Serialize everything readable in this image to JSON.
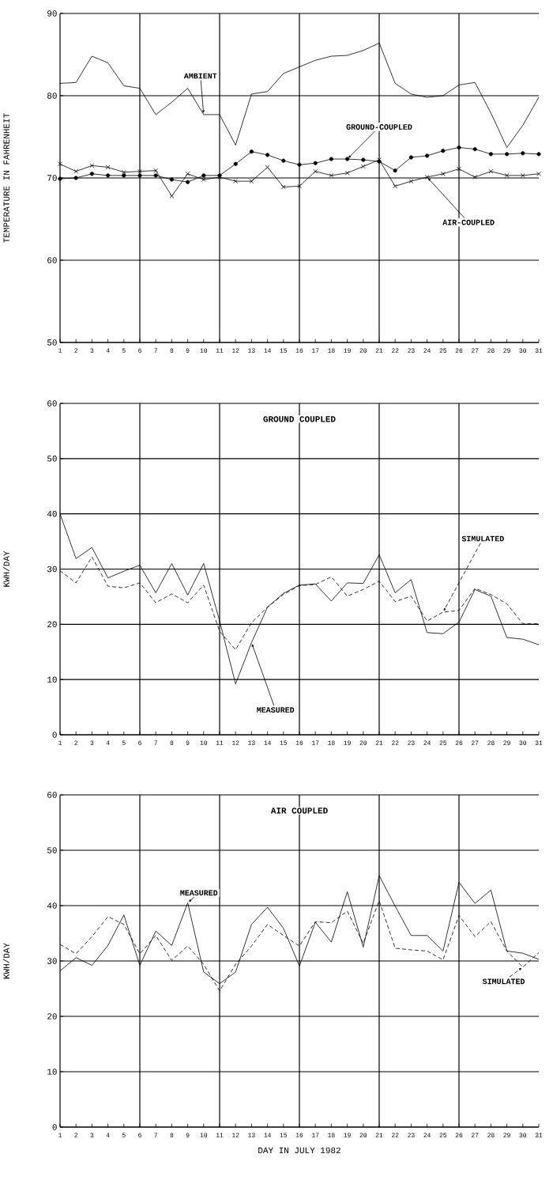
{
  "chart_data": [
    {
      "type": "line",
      "ylabel": "TEMPERATURE IN FAHRENHEIT",
      "x": [
        1,
        2,
        3,
        4,
        5,
        6,
        7,
        8,
        9,
        10,
        11,
        12,
        13,
        14,
        15,
        16,
        17,
        18,
        19,
        20,
        21,
        22,
        23,
        24,
        25,
        26,
        27,
        28,
        29,
        30,
        31
      ],
      "xlim": [
        1,
        31
      ],
      "xticks": [
        1,
        2,
        3,
        4,
        5,
        6,
        7,
        8,
        9,
        10,
        11,
        12,
        13,
        14,
        15,
        16,
        17,
        18,
        19,
        20,
        21,
        22,
        23,
        24,
        25,
        26,
        27,
        28,
        29,
        30,
        31
      ],
      "ylim": [
        50,
        90
      ],
      "yticks": [
        50,
        60,
        70,
        80,
        90
      ],
      "grid": "y",
      "ref_lines": [
        {
          "axis": "x",
          "value": 6
        },
        {
          "axis": "x",
          "value": 11
        },
        {
          "axis": "x",
          "value": 16
        },
        {
          "axis": "x",
          "value": 21
        },
        {
          "axis": "x",
          "value": 26
        }
      ],
      "series": [
        {
          "name": "AMBIENT",
          "color": "#000000",
          "marker": "none",
          "line_style": "solid",
          "values": [
            81.5,
            81.6,
            84.8,
            84.0,
            81.2,
            80.9,
            77.7,
            79.2,
            80.9,
            77.7,
            77.7,
            74.0,
            80.2,
            80.5,
            82.7,
            83.5,
            84.3,
            84.8,
            84.9,
            85.5,
            86.4,
            81.5,
            80.2,
            79.8,
            80.0,
            81.3,
            81.6,
            77.9,
            73.7,
            76.4,
            79.8
          ]
        },
        {
          "name": "GROUND-COUPLED",
          "color": "#000000",
          "marker": "circle",
          "line_style": "solid",
          "values": [
            69.9,
            70.0,
            70.5,
            70.3,
            70.3,
            70.3,
            70.3,
            69.8,
            69.5,
            70.3,
            70.3,
            71.7,
            73.2,
            72.8,
            72.1,
            71.6,
            71.8,
            72.3,
            72.3,
            72.2,
            72.0,
            70.9,
            72.5,
            72.7,
            73.3,
            73.7,
            73.5,
            72.9,
            72.9,
            73.0,
            72.9
          ]
        },
        {
          "name": "AIR-COUPLED",
          "color": "#000000",
          "marker": "cross",
          "line_style": "solid",
          "values": [
            71.7,
            70.8,
            71.5,
            71.3,
            70.7,
            70.8,
            70.9,
            67.8,
            70.5,
            69.8,
            70.1,
            69.6,
            69.6,
            71.3,
            68.9,
            69.0,
            70.8,
            70.3,
            70.6,
            71.4,
            72.2,
            69.0,
            69.6,
            70.1,
            70.5,
            71.1,
            70.1,
            70.8,
            70.3,
            70.3,
            70.5
          ]
        }
      ]
    },
    {
      "type": "line",
      "title": "GROUND COUPLED",
      "ylabel": "KWH/DAY",
      "x": [
        1,
        2,
        3,
        4,
        5,
        6,
        7,
        8,
        9,
        10,
        11,
        12,
        13,
        14,
        15,
        16,
        17,
        18,
        19,
        20,
        21,
        22,
        23,
        24,
        25,
        26,
        27,
        28,
        29,
        30,
        31
      ],
      "xlim": [
        1,
        31
      ],
      "xticks": [
        1,
        2,
        3,
        4,
        5,
        6,
        7,
        8,
        9,
        10,
        11,
        12,
        13,
        14,
        15,
        16,
        17,
        18,
        19,
        20,
        21,
        22,
        23,
        24,
        25,
        26,
        27,
        28,
        29,
        30,
        31
      ],
      "ylim": [
        0,
        60
      ],
      "yticks": [
        0,
        10,
        20,
        30,
        40,
        50,
        60
      ],
      "grid": "y",
      "ref_lines": [
        {
          "axis": "x",
          "value": 6
        },
        {
          "axis": "x",
          "value": 11
        },
        {
          "axis": "x",
          "value": 16
        },
        {
          "axis": "x",
          "value": 21
        },
        {
          "axis": "x",
          "value": 26
        }
      ],
      "series": [
        {
          "name": "MEASURED",
          "color": "#000000",
          "marker": "none",
          "line_style": "solid",
          "values": [
            40.0,
            31.9,
            33.9,
            28.4,
            29.6,
            30.7,
            25.7,
            31.0,
            25.3,
            31.0,
            20.6,
            9.2,
            16.7,
            23.1,
            25.6,
            27.1,
            27.3,
            24.2,
            27.5,
            27.4,
            32.6,
            25.7,
            28.1,
            18.5,
            18.3,
            20.4,
            26.3,
            25.1,
            17.6,
            17.3,
            16.3
          ]
        },
        {
          "name": "SIMULATED",
          "color": "#000000",
          "marker": "none",
          "line_style": "dashed",
          "values": [
            29.7,
            27.5,
            32.2,
            26.9,
            26.6,
            27.5,
            23.9,
            25.5,
            23.9,
            27.1,
            18.7,
            15.4,
            20.3,
            23.1,
            25.4,
            27.0,
            27.2,
            28.6,
            25.1,
            26.3,
            27.8,
            24.1,
            25.1,
            20.6,
            22.2,
            22.5,
            26.5,
            25.4,
            23.7,
            20.1,
            20.1
          ]
        }
      ]
    },
    {
      "type": "line",
      "title": "AIR COUPLED",
      "ylabel": "KWH/DAY",
      "xlabel": "DAY IN JULY 1982",
      "x": [
        1,
        2,
        3,
        4,
        5,
        6,
        7,
        8,
        9,
        10,
        11,
        12,
        13,
        14,
        15,
        16,
        17,
        18,
        19,
        20,
        21,
        22,
        23,
        24,
        25,
        26,
        27,
        28,
        29,
        30,
        31
      ],
      "xlim": [
        1,
        31
      ],
      "xticks": [
        1,
        2,
        3,
        4,
        5,
        6,
        7,
        8,
        9,
        10,
        11,
        12,
        13,
        14,
        15,
        16,
        17,
        18,
        19,
        20,
        21,
        22,
        23,
        24,
        25,
        26,
        27,
        28,
        29,
        30,
        31
      ],
      "ylim": [
        0,
        60
      ],
      "yticks": [
        0,
        10,
        20,
        30,
        40,
        50,
        60
      ],
      "grid": "y",
      "ref_lines": [
        {
          "axis": "x",
          "value": 6
        },
        {
          "axis": "x",
          "value": 11
        },
        {
          "axis": "x",
          "value": 16
        },
        {
          "axis": "x",
          "value": 21
        },
        {
          "axis": "x",
          "value": 26
        }
      ],
      "series": [
        {
          "name": "MEASURED",
          "color": "#000000",
          "marker": "none",
          "line_style": "solid",
          "values": [
            28.2,
            30.6,
            29.2,
            32.8,
            38.3,
            29.2,
            35.4,
            32.8,
            40.5,
            28.0,
            25.9,
            28.0,
            36.6,
            39.7,
            35.9,
            29.1,
            37.0,
            33.4,
            42.5,
            32.5,
            45.4,
            39.9,
            34.6,
            34.6,
            31.8,
            44.2,
            40.4,
            42.8,
            31.8,
            31.4,
            30.3
          ]
        },
        {
          "name": "SIMULATED",
          "color": "#000000",
          "marker": "none",
          "line_style": "dashed",
          "values": [
            33.0,
            31.3,
            34.4,
            38.0,
            36.6,
            31.3,
            34.6,
            30.1,
            32.7,
            29.4,
            24.6,
            29.4,
            32.7,
            36.6,
            34.6,
            32.7,
            37.1,
            36.9,
            39.0,
            33.2,
            40.9,
            32.3,
            32.0,
            31.8,
            30.2,
            38.2,
            34.4,
            37.1,
            31.8,
            28.9,
            31.5
          ]
        }
      ]
    }
  ]
}
